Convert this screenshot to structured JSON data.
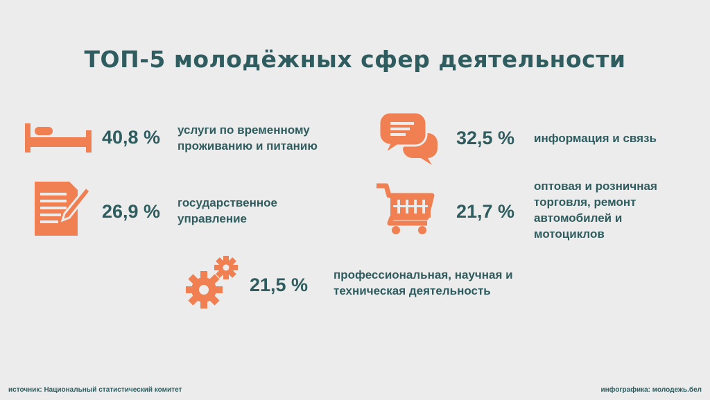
{
  "title": "ТОП-5 молодёжных сфер деятельности",
  "accent_color": "#f07f52",
  "text_color": "#2f5c5e",
  "items": [
    {
      "icon": "bed-icon",
      "percent": "40,8 %",
      "label_lines": [
        "услуги по временному",
        "проживанию и питанию"
      ]
    },
    {
      "icon": "chat-bubbles-icon",
      "percent": "32,5 %",
      "label_lines": [
        "информация и связь"
      ]
    },
    {
      "icon": "document-pencil-icon",
      "percent": "26,9 %",
      "label_lines": [
        "государственное",
        "управление"
      ]
    },
    {
      "icon": "shopping-cart-icon",
      "percent": "21,7 %",
      "label_lines": [
        "оптовая и розничная",
        "торговля, ремонт",
        "автомобилей и",
        "мотоциклов"
      ]
    },
    {
      "icon": "gears-icon",
      "percent": "21,5 %",
      "label_lines": [
        "профессиональная, научная и",
        "техническая деятельность"
      ]
    }
  ],
  "footer": {
    "source": "источник: Национальный статистический комитет",
    "credit": "инфографика: молодежь.бел"
  }
}
